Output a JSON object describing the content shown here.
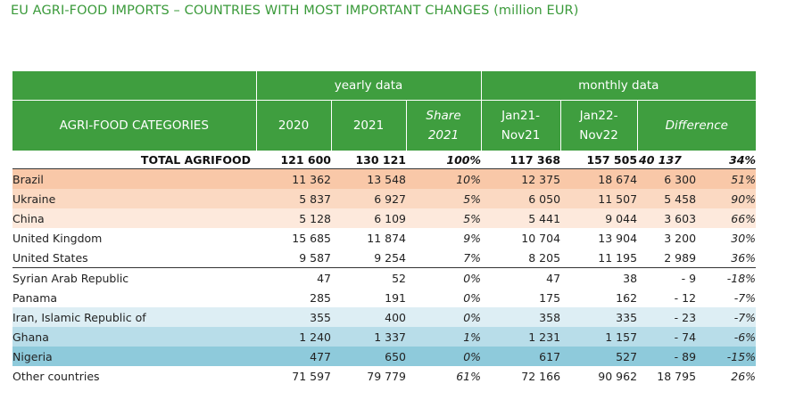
{
  "title": "EU AGRI-FOOD IMPORTS – COUNTRIES WITH MOST IMPORTANT CHANGES (million EUR)",
  "header": {
    "group_yearly": "yearly data",
    "group_monthly": "monthly data",
    "col_category": "AGRI-FOOD CATEGORIES",
    "col_2020": "2020",
    "col_2021": "2021",
    "col_share_1": "Share",
    "col_share_2": "2021",
    "col_m1_1": "Jan21-",
    "col_m1_2": "Nov21",
    "col_m2_1": "Jan22-",
    "col_m2_2": "Nov22",
    "col_diff": "Difference"
  },
  "total": {
    "label": "TOTAL AGRIFOOD",
    "y2020": "121 600",
    "y2021": "130 121",
    "share": "100%",
    "m1": "117 368",
    "m2": "157 505",
    "diff": "40 137",
    "pct": "34%"
  },
  "colors": {
    "header_green": "#3f9e3f",
    "title_green": "#3a9a3a",
    "brazil_bg": "#f9c8a8",
    "ukraine_bg": "#fbd9c2",
    "china_bg": "#fde9dc",
    "iran_bg": "#ddeef4",
    "ghana_bg": "#b8dde9",
    "nigeria_bg": "#8ecadb"
  },
  "rows": [
    {
      "name": "Brazil",
      "y2020": "11 362",
      "y2021": "13 548",
      "share": "10%",
      "m1": "12 375",
      "m2": "18 674",
      "diff": "6 300",
      "pct": "51%",
      "bg": "#f9c8a8"
    },
    {
      "name": "Ukraine",
      "y2020": "5 837",
      "y2021": "6 927",
      "share": "5%",
      "m1": "6 050",
      "m2": "11 507",
      "diff": "5 458",
      "pct": "90%",
      "bg": "#fbd9c2"
    },
    {
      "name": "China",
      "y2020": "5 128",
      "y2021": "6 109",
      "share": "5%",
      "m1": "5 441",
      "m2": "9 044",
      "diff": "3 603",
      "pct": "66%",
      "bg": "#fde9dc"
    },
    {
      "name": "United Kingdom",
      "y2020": "15 685",
      "y2021": "11 874",
      "share": "9%",
      "m1": "10 704",
      "m2": "13 904",
      "diff": "3 200",
      "pct": "30%",
      "bg": "#ffffff"
    },
    {
      "name": "United States",
      "y2020": "9 587",
      "y2021": "9 254",
      "share": "7%",
      "m1": "8 205",
      "m2": "11 195",
      "diff": "2 989",
      "pct": "36%",
      "bg": "#ffffff"
    },
    {
      "name": "Syrian Arab Republic",
      "y2020": "47",
      "y2021": "52",
      "share": "0%",
      "m1": "47",
      "m2": "38",
      "diff": "- 9",
      "pct": "-18%",
      "bg": "#ffffff"
    },
    {
      "name": "Panama",
      "y2020": "285",
      "y2021": "191",
      "share": "0%",
      "m1": "175",
      "m2": "162",
      "diff": "- 12",
      "pct": "-7%",
      "bg": "#ffffff"
    },
    {
      "name": "Iran, Islamic Republic of",
      "y2020": "355",
      "y2021": "400",
      "share": "0%",
      "m1": "358",
      "m2": "335",
      "diff": "- 23",
      "pct": "-7%",
      "bg": "#ddeef4"
    },
    {
      "name": "Ghana",
      "y2020": "1 240",
      "y2021": "1 337",
      "share": "1%",
      "m1": "1 231",
      "m2": "1 157",
      "diff": "- 74",
      "pct": "-6%",
      "bg": "#b8dde9"
    },
    {
      "name": "Nigeria",
      "y2020": "477",
      "y2021": "650",
      "share": "0%",
      "m1": "617",
      "m2": "527",
      "diff": "- 89",
      "pct": "-15%",
      "bg": "#8ecadb"
    },
    {
      "name": "Other countries",
      "y2020": "71 597",
      "y2021": "79 779",
      "share": "61%",
      "m1": "72 166",
      "m2": "90 962",
      "diff": "18 795",
      "pct": "26%",
      "bg": "#ffffff"
    }
  ]
}
